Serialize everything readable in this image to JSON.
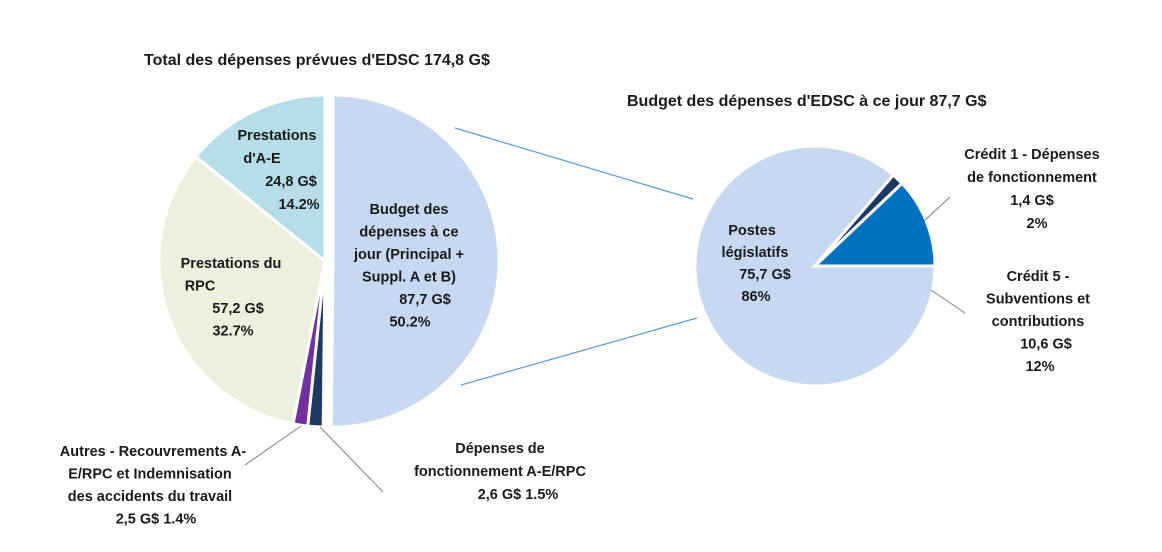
{
  "chart_data": [
    {
      "type": "pie",
      "title": "Total des dépenses prévues d'EDSC 174,8 G$",
      "categories": [
        "Budget des dépenses à ce jour (Principal + Suppl. A et B)",
        "Dépenses de fonctionnement A-E/RPC",
        "Autres - Recouvrements A-E/RPC et Indemnisation des accidents du travail",
        "Prestations du RPC",
        "Prestations d'A-E"
      ],
      "values": [
        87.7,
        2.6,
        2.5,
        57.2,
        24.8
      ],
      "percents": [
        50.2,
        1.5,
        1.4,
        32.7,
        14.2
      ],
      "colors": [
        "#c6d9f1",
        "#1f3864",
        "#7030a0",
        "#ebf1de",
        "#b7dee8"
      ],
      "exploded_slice": 0,
      "labels": [
        [
          "Budget des",
          "dépenses à ce",
          "jour (Principal +",
          "Suppl. A et B)",
          "87,7 G$",
          "50.2%"
        ],
        [
          "Dépenses de",
          "fonctionnement A-E/RPC",
          "2,6 G$ 1.5%"
        ],
        [
          "Autres - Recouvrements A-",
          "E/RPC et Indemnisation",
          "des accidents du travail",
          "2,5 G$  1.4%"
        ],
        [
          "Prestations du",
          "RPC",
          "57,2 G$",
          "32.7%"
        ],
        [
          "Prestations",
          "d'A-E",
          "24,8 G$",
          "14.2%"
        ]
      ]
    },
    {
      "type": "pie",
      "title": "Budget des dépenses d'EDSC à ce jour  87,7 G$",
      "categories": [
        "Postes législatifs",
        "Crédit 1 - Dépenses de fonctionnement",
        "Crédit 5 - Subventions et contributions"
      ],
      "values": [
        75.7,
        1.4,
        10.6
      ],
      "percents": [
        86,
        2,
        12
      ],
      "colors": [
        "#c6d9f1",
        "#1f3864",
        "#0070c0"
      ],
      "labels": [
        [
          "Postes",
          "législatifs",
          "75,7 G$",
          "86%"
        ],
        [
          "Crédit 1 - Dépenses",
          "de fonctionnement",
          "1,4 G$",
          "2%"
        ],
        [
          "Crédit 5 -",
          "Subventions et",
          "contributions",
          "10,6 G$",
          "12%"
        ]
      ]
    }
  ]
}
